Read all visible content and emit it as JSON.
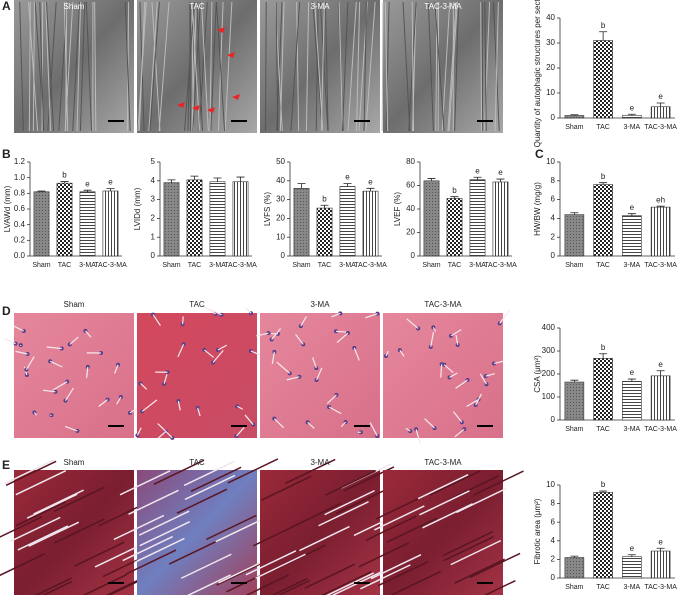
{
  "panels": [
    "A",
    "B",
    "C",
    "D",
    "E"
  ],
  "image_rows": [
    {
      "labels": [
        "Sham",
        "TAC",
        "3-MA",
        "TAC-3-MA"
      ]
    },
    {
      "labels": [
        "Sham",
        "TAC",
        "3-MA",
        "TAC-3-MA"
      ]
    },
    {
      "labels": [
        "Sham",
        "TAC",
        "3-MA",
        "TAC-3-MA"
      ]
    }
  ],
  "chart_data": [
    {
      "type": "bar",
      "ylabel": "Quantity of autophagic structures per section",
      "categories": [
        "Sham",
        "TAC",
        "3-MA",
        "TAC-3-MA"
      ],
      "values": [
        1,
        31,
        1,
        4.5
      ],
      "errors": [
        0.3,
        3.5,
        0.5,
        1.5
      ],
      "annotations": [
        null,
        "b",
        "e",
        "e"
      ],
      "ylim": [
        0,
        40
      ],
      "yticks": [
        0,
        10,
        20,
        30,
        40
      ]
    },
    {
      "type": "bar",
      "ylabel": "LVAWd (mm)",
      "categories": [
        "Sham",
        "TAC",
        "3-MA",
        "TAC-3-MA"
      ],
      "values": [
        0.82,
        0.93,
        0.82,
        0.83
      ],
      "errors": [
        0.01,
        0.02,
        0.02,
        0.03
      ],
      "annotations": [
        null,
        "b",
        "e",
        "e"
      ],
      "ylim": [
        0,
        1.2
      ],
      "yticks": [
        {
          "value": 0,
          "label": "0.0"
        },
        0.2,
        0.4,
        0.6,
        0.8,
        {
          "value": 1,
          "label": "1.0"
        },
        1.2
      ]
    },
    {
      "type": "bar",
      "ylabel": "LVIDd (mm)",
      "categories": [
        "Sham",
        "TAC",
        "3-MA",
        "TAC-3-MA"
      ],
      "values": [
        3.9,
        4.05,
        3.95,
        3.95
      ],
      "errors": [
        0.15,
        0.2,
        0.2,
        0.25
      ],
      "annotations": [
        null,
        null,
        null,
        null
      ],
      "ylim": [
        0,
        5
      ],
      "yticks": [
        0,
        1,
        2,
        3,
        4,
        5
      ]
    },
    {
      "type": "bar",
      "ylabel": "LVFS (%)",
      "categories": [
        "Sham",
        "TAC",
        "3-MA",
        "TAC-3-MA"
      ],
      "values": [
        36,
        25.5,
        37,
        34.5
      ],
      "errors": [
        2.5,
        1.5,
        1.5,
        1.5
      ],
      "annotations": [
        null,
        "b",
        "e",
        "e"
      ],
      "ylim": [
        0,
        50
      ],
      "yticks": [
        0,
        10,
        20,
        30,
        40,
        50
      ]
    },
    {
      "type": "bar",
      "ylabel": "LVEF (%)",
      "categories": [
        "Sham",
        "TAC",
        "3-MA",
        "TAC-3-MA"
      ],
      "values": [
        64,
        49,
        65,
        63
      ],
      "errors": [
        2,
        1.5,
        2,
        2.5
      ],
      "annotations": [
        null,
        "b",
        "e",
        "e"
      ],
      "ylim": [
        0,
        80
      ],
      "yticks": [
        0,
        20,
        40,
        60,
        80
      ]
    },
    {
      "type": "bar",
      "ylabel": "HW/BW (mg/g)",
      "categories": [
        "Sham",
        "TAC",
        "3-MA",
        "TAC-3-MA"
      ],
      "values": [
        4.4,
        7.6,
        4.3,
        5.2
      ],
      "errors": [
        0.2,
        0.2,
        0.2,
        0.1
      ],
      "annotations": [
        null,
        "b",
        "e",
        "eh"
      ],
      "ylim": [
        0,
        10
      ],
      "yticks": [
        0,
        2,
        4,
        6,
        8,
        10
      ]
    },
    {
      "type": "bar",
      "ylabel": "CSA (μm²)",
      "categories": [
        "Sham",
        "TAC",
        "3-MA",
        "TAC-3-MA"
      ],
      "values": [
        165,
        268,
        168,
        192
      ],
      "errors": [
        8,
        20,
        10,
        22
      ],
      "annotations": [
        null,
        "b",
        "e",
        "e"
      ],
      "ylim": [
        0,
        400
      ],
      "yticks": [
        0,
        100,
        200,
        300,
        400
      ]
    },
    {
      "type": "bar",
      "ylabel": "Fibrotic area (μm²)",
      "categories": [
        "Sham",
        "TAC",
        "3-MA",
        "TAC-3-MA"
      ],
      "values": [
        2.2,
        9.2,
        2.3,
        2.9
      ],
      "errors": [
        0.15,
        0.15,
        0.2,
        0.3
      ],
      "annotations": [
        null,
        "b",
        "e",
        "e"
      ],
      "ylim": [
        0,
        10
      ],
      "yticks": [
        0,
        2,
        4,
        6,
        8,
        10
      ]
    }
  ]
}
